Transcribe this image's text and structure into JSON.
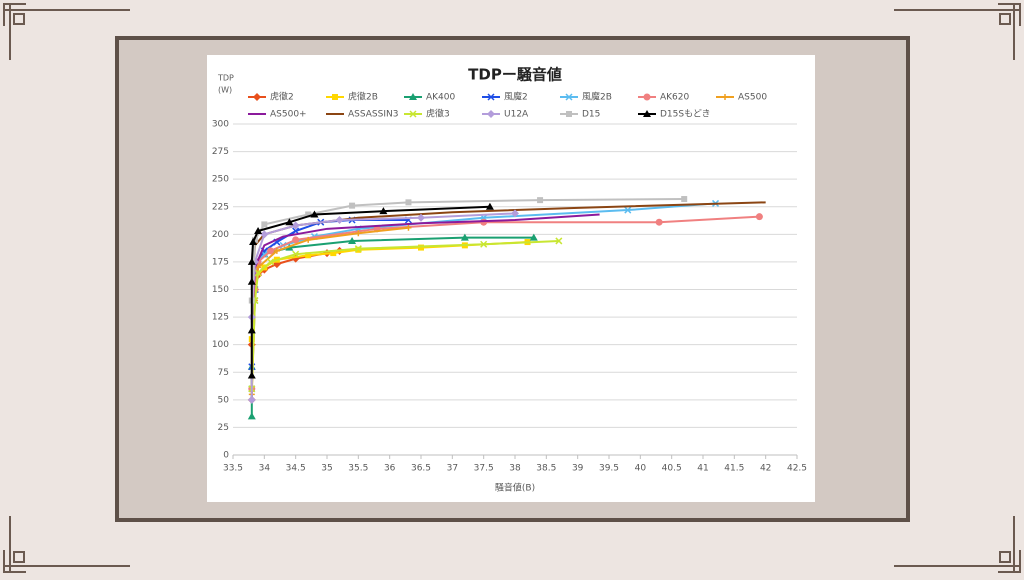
{
  "chart_data": {
    "type": "line",
    "title": "TDPー騒音値",
    "y_label": [
      "TDP",
      "(W)"
    ],
    "x_label": "騒音値(B)",
    "xlim": [
      33.5,
      42.5
    ],
    "xticks": [
      33.5,
      34,
      34.5,
      35,
      35.5,
      36,
      36.5,
      37,
      37.5,
      38,
      38.5,
      39,
      39.5,
      40,
      40.5,
      41,
      41.5,
      42,
      42.5
    ],
    "ylim": [
      0,
      300
    ],
    "yticks": [
      0,
      25,
      50,
      75,
      100,
      125,
      150,
      175,
      200,
      225,
      250,
      275,
      300
    ],
    "grid": true,
    "series": [
      {
        "name": "虎徹2",
        "color": "#e8501c",
        "marker": "diamond",
        "x": [
          33.8,
          33.8,
          33.85,
          33.9,
          34,
          34.2,
          34.5,
          35,
          35.2
        ],
        "values": [
          50,
          100,
          150,
          163,
          168,
          173,
          178,
          183,
          185
        ]
      },
      {
        "name": "虎徹2B",
        "color": "#ffd700",
        "marker": "square",
        "x": [
          33.8,
          33.8,
          33.85,
          34,
          34.2,
          34.7,
          35.1,
          35.5,
          36.5,
          37.2,
          38.2
        ],
        "values": [
          60,
          105,
          160,
          170,
          177,
          181,
          183,
          186,
          188,
          190,
          193
        ]
      },
      {
        "name": "AK400",
        "color": "#1aa071",
        "marker": "triangle",
        "x": [
          33.8,
          33.8,
          33.85,
          33.9,
          34,
          34.4,
          35.4,
          37.2,
          38.3
        ],
        "values": [
          35,
          80,
          150,
          175,
          182,
          188,
          194,
          197,
          197
        ]
      },
      {
        "name": "風魔2",
        "color": "#1f4ee6",
        "marker": "x",
        "x": [
          33.8,
          33.85,
          33.9,
          34,
          34.2,
          34.5,
          34.9,
          35.4,
          36.3
        ],
        "values": [
          80,
          150,
          175,
          185,
          193,
          203,
          211,
          213,
          213
        ]
      },
      {
        "name": "風魔2B",
        "color": "#5bbcf0",
        "marker": "x",
        "x": [
          33.8,
          33.85,
          33.9,
          34,
          34.3,
          34.8,
          35.5,
          37.5,
          39.8,
          41.2
        ],
        "values": [
          60,
          140,
          175,
          182,
          190,
          198,
          205,
          215,
          222,
          228
        ]
      },
      {
        "name": "AK620",
        "color": "#f08080",
        "marker": "circle",
        "x": [
          33.8,
          33.85,
          33.9,
          34.1,
          34.5,
          35.8,
          37.5,
          40.3,
          41.9
        ],
        "values": [
          60,
          150,
          175,
          185,
          195,
          205,
          211,
          211,
          216
        ]
      },
      {
        "name": "AS500",
        "color": "#f0a020",
        "marker": "plus",
        "x": [
          33.8,
          33.85,
          33.9,
          34.2,
          34.7,
          35.5,
          36.3
        ],
        "values": [
          55,
          140,
          170,
          185,
          195,
          201,
          206
        ]
      },
      {
        "name": "AS500+",
        "color": "#8b1a9c",
        "marker": "none",
        "x": [
          33.8,
          33.85,
          34,
          34.3,
          35,
          36.5,
          38,
          39.35
        ],
        "values": [
          120,
          170,
          190,
          198,
          205,
          210,
          213,
          218
        ]
      },
      {
        "name": "ASSASSIN3",
        "color": "#8b4513",
        "marker": "none",
        "x": [
          33.8,
          33.85,
          34,
          34.5,
          35.5,
          37,
          39,
          42
        ],
        "values": [
          150,
          190,
          200,
          208,
          215,
          220,
          224,
          229
        ]
      },
      {
        "name": "虎徹3",
        "color": "#c8e632",
        "marker": "x",
        "x": [
          33.8,
          33.85,
          33.9,
          34.1,
          34.5,
          35.5,
          37.5,
          38.7
        ],
        "values": [
          60,
          140,
          165,
          175,
          182,
          187,
          191,
          194
        ]
      },
      {
        "name": "U12A",
        "color": "#b39ddb",
        "marker": "diamond",
        "x": [
          33.8,
          33.8,
          33.85,
          34,
          34.5,
          35.2,
          36.5,
          38
        ],
        "values": [
          50,
          125,
          175,
          200,
          208,
          213,
          215,
          219
        ]
      },
      {
        "name": "D15",
        "color": "#c0c0c0",
        "marker": "square",
        "x": [
          33.8,
          33.85,
          34,
          34.7,
          35.4,
          36.3,
          38.4,
          40.7
        ],
        "values": [
          140,
          195,
          209,
          218,
          226,
          229,
          231,
          232
        ]
      },
      {
        "name": "D15Sもどき",
        "color": "#000000",
        "marker": "triangle",
        "x": [
          33.8,
          33.8,
          33.8,
          33.8,
          33.82,
          33.9,
          34.4,
          34.8,
          35.9,
          37.6
        ],
        "values": [
          72,
          113,
          157,
          175,
          193,
          203,
          211,
          218,
          221,
          225
        ]
      }
    ]
  }
}
